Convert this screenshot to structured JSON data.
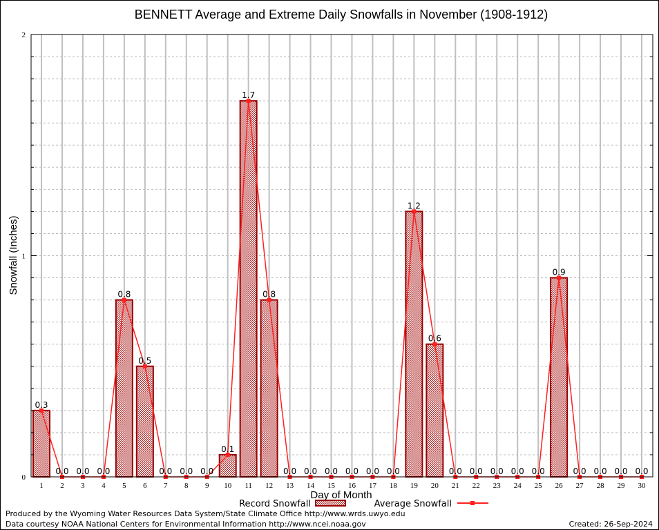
{
  "chart_data": {
    "type": "bar",
    "title": "BENNETT Average and Extreme Daily Snowfalls in November (1908-1912)",
    "xlabel": "Day of Month",
    "ylabel": "Snowfall (Inches)",
    "ylim": [
      0,
      2
    ],
    "yticks": [
      "0",
      "1",
      "2"
    ],
    "grid": true,
    "categories": [
      "1",
      "2",
      "3",
      "4",
      "5",
      "6",
      "7",
      "8",
      "9",
      "10",
      "11",
      "12",
      "13",
      "14",
      "15",
      "16",
      "17",
      "18",
      "19",
      "20",
      "21",
      "22",
      "23",
      "24",
      "25",
      "26",
      "27",
      "28",
      "29",
      "30"
    ],
    "series": [
      {
        "name": "Record Snowfall",
        "type": "bar",
        "color": "#990000",
        "values": [
          0.3,
          0.0,
          0.0,
          0.0,
          0.8,
          0.5,
          0.0,
          0.0,
          0.0,
          0.1,
          1.7,
          0.8,
          0.0,
          0.0,
          0.0,
          0.0,
          0.0,
          0.0,
          1.2,
          0.6,
          0.0,
          0.0,
          0.0,
          0.0,
          0.0,
          0.9,
          0.0,
          0.0,
          0.0,
          0.0
        ]
      },
      {
        "name": "Average Snowfall",
        "type": "line",
        "color": "#ff2020",
        "values": [
          0.3,
          0.0,
          0.0,
          0.0,
          0.8,
          0.5,
          0.0,
          0.0,
          0.0,
          0.1,
          1.7,
          0.8,
          0.0,
          0.0,
          0.0,
          0.0,
          0.0,
          0.0,
          1.2,
          0.6,
          0.0,
          0.0,
          0.0,
          0.0,
          0.0,
          0.9,
          0.0,
          0.0,
          0.0,
          0.0
        ]
      }
    ],
    "legend": "bottom"
  },
  "footer": {
    "produced": "Produced by the Wyoming Water Resources Data System/State Climate Office http://www.wrds.uwyo.edu",
    "courtesy": "Data courtesy NOAA National Centers for Environmental Information http://www.ncei.noaa.gov",
    "created": "Created: 26-Sep-2024"
  }
}
